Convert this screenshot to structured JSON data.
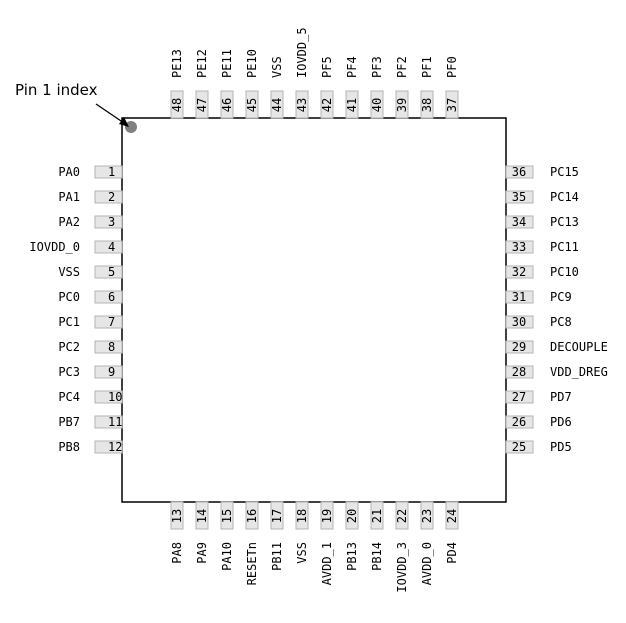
{
  "diagram": {
    "index_label": "Pin 1 index",
    "left_pins": [
      {
        "num": "1",
        "name": "PA0"
      },
      {
        "num": "2",
        "name": "PA1"
      },
      {
        "num": "3",
        "name": "PA2"
      },
      {
        "num": "4",
        "name": "IOVDD_0"
      },
      {
        "num": "5",
        "name": "VSS"
      },
      {
        "num": "6",
        "name": "PC0"
      },
      {
        "num": "7",
        "name": "PC1"
      },
      {
        "num": "8",
        "name": "PC2"
      },
      {
        "num": "9",
        "name": "PC3"
      },
      {
        "num": "10",
        "name": "PC4"
      },
      {
        "num": "11",
        "name": "PB7"
      },
      {
        "num": "12",
        "name": "PB8"
      }
    ],
    "bottom_pins": [
      {
        "num": "13",
        "name": "PA8"
      },
      {
        "num": "14",
        "name": "PA9"
      },
      {
        "num": "15",
        "name": "PA10"
      },
      {
        "num": "16",
        "name": "RESETn"
      },
      {
        "num": "17",
        "name": "PB11"
      },
      {
        "num": "18",
        "name": "VSS"
      },
      {
        "num": "19",
        "name": "AVDD_1"
      },
      {
        "num": "20",
        "name": "PB13"
      },
      {
        "num": "21",
        "name": "PB14"
      },
      {
        "num": "22",
        "name": "IOVDD_3"
      },
      {
        "num": "23",
        "name": "AVDD_0"
      },
      {
        "num": "24",
        "name": "PD4"
      }
    ],
    "right_pins": [
      {
        "num": "25",
        "name": "PD5"
      },
      {
        "num": "26",
        "name": "PD6"
      },
      {
        "num": "27",
        "name": "PD7"
      },
      {
        "num": "28",
        "name": "VDD_DREG"
      },
      {
        "num": "29",
        "name": "DECOUPLE"
      },
      {
        "num": "30",
        "name": "PC8"
      },
      {
        "num": "31",
        "name": "PC9"
      },
      {
        "num": "32",
        "name": "PC10"
      },
      {
        "num": "33",
        "name": "PC11"
      },
      {
        "num": "34",
        "name": "PC13"
      },
      {
        "num": "35",
        "name": "PC14"
      },
      {
        "num": "36",
        "name": "PC15"
      }
    ],
    "top_pins": [
      {
        "num": "37",
        "name": "PF0"
      },
      {
        "num": "38",
        "name": "PF1"
      },
      {
        "num": "39",
        "name": "PF2"
      },
      {
        "num": "40",
        "name": "PF3"
      },
      {
        "num": "41",
        "name": "PF4"
      },
      {
        "num": "42",
        "name": "PF5"
      },
      {
        "num": "43",
        "name": "IOVDD_5"
      },
      {
        "num": "44",
        "name": "VSS"
      },
      {
        "num": "45",
        "name": "PE10"
      },
      {
        "num": "46",
        "name": "PE11"
      },
      {
        "num": "47",
        "name": "PE12"
      },
      {
        "num": "48",
        "name": "PE13"
      }
    ],
    "colors": {
      "outline": "#000000",
      "pin_fill": "#e6e6e6",
      "pin_stroke": "#b4b4b4",
      "index_dot": "#808080"
    }
  }
}
